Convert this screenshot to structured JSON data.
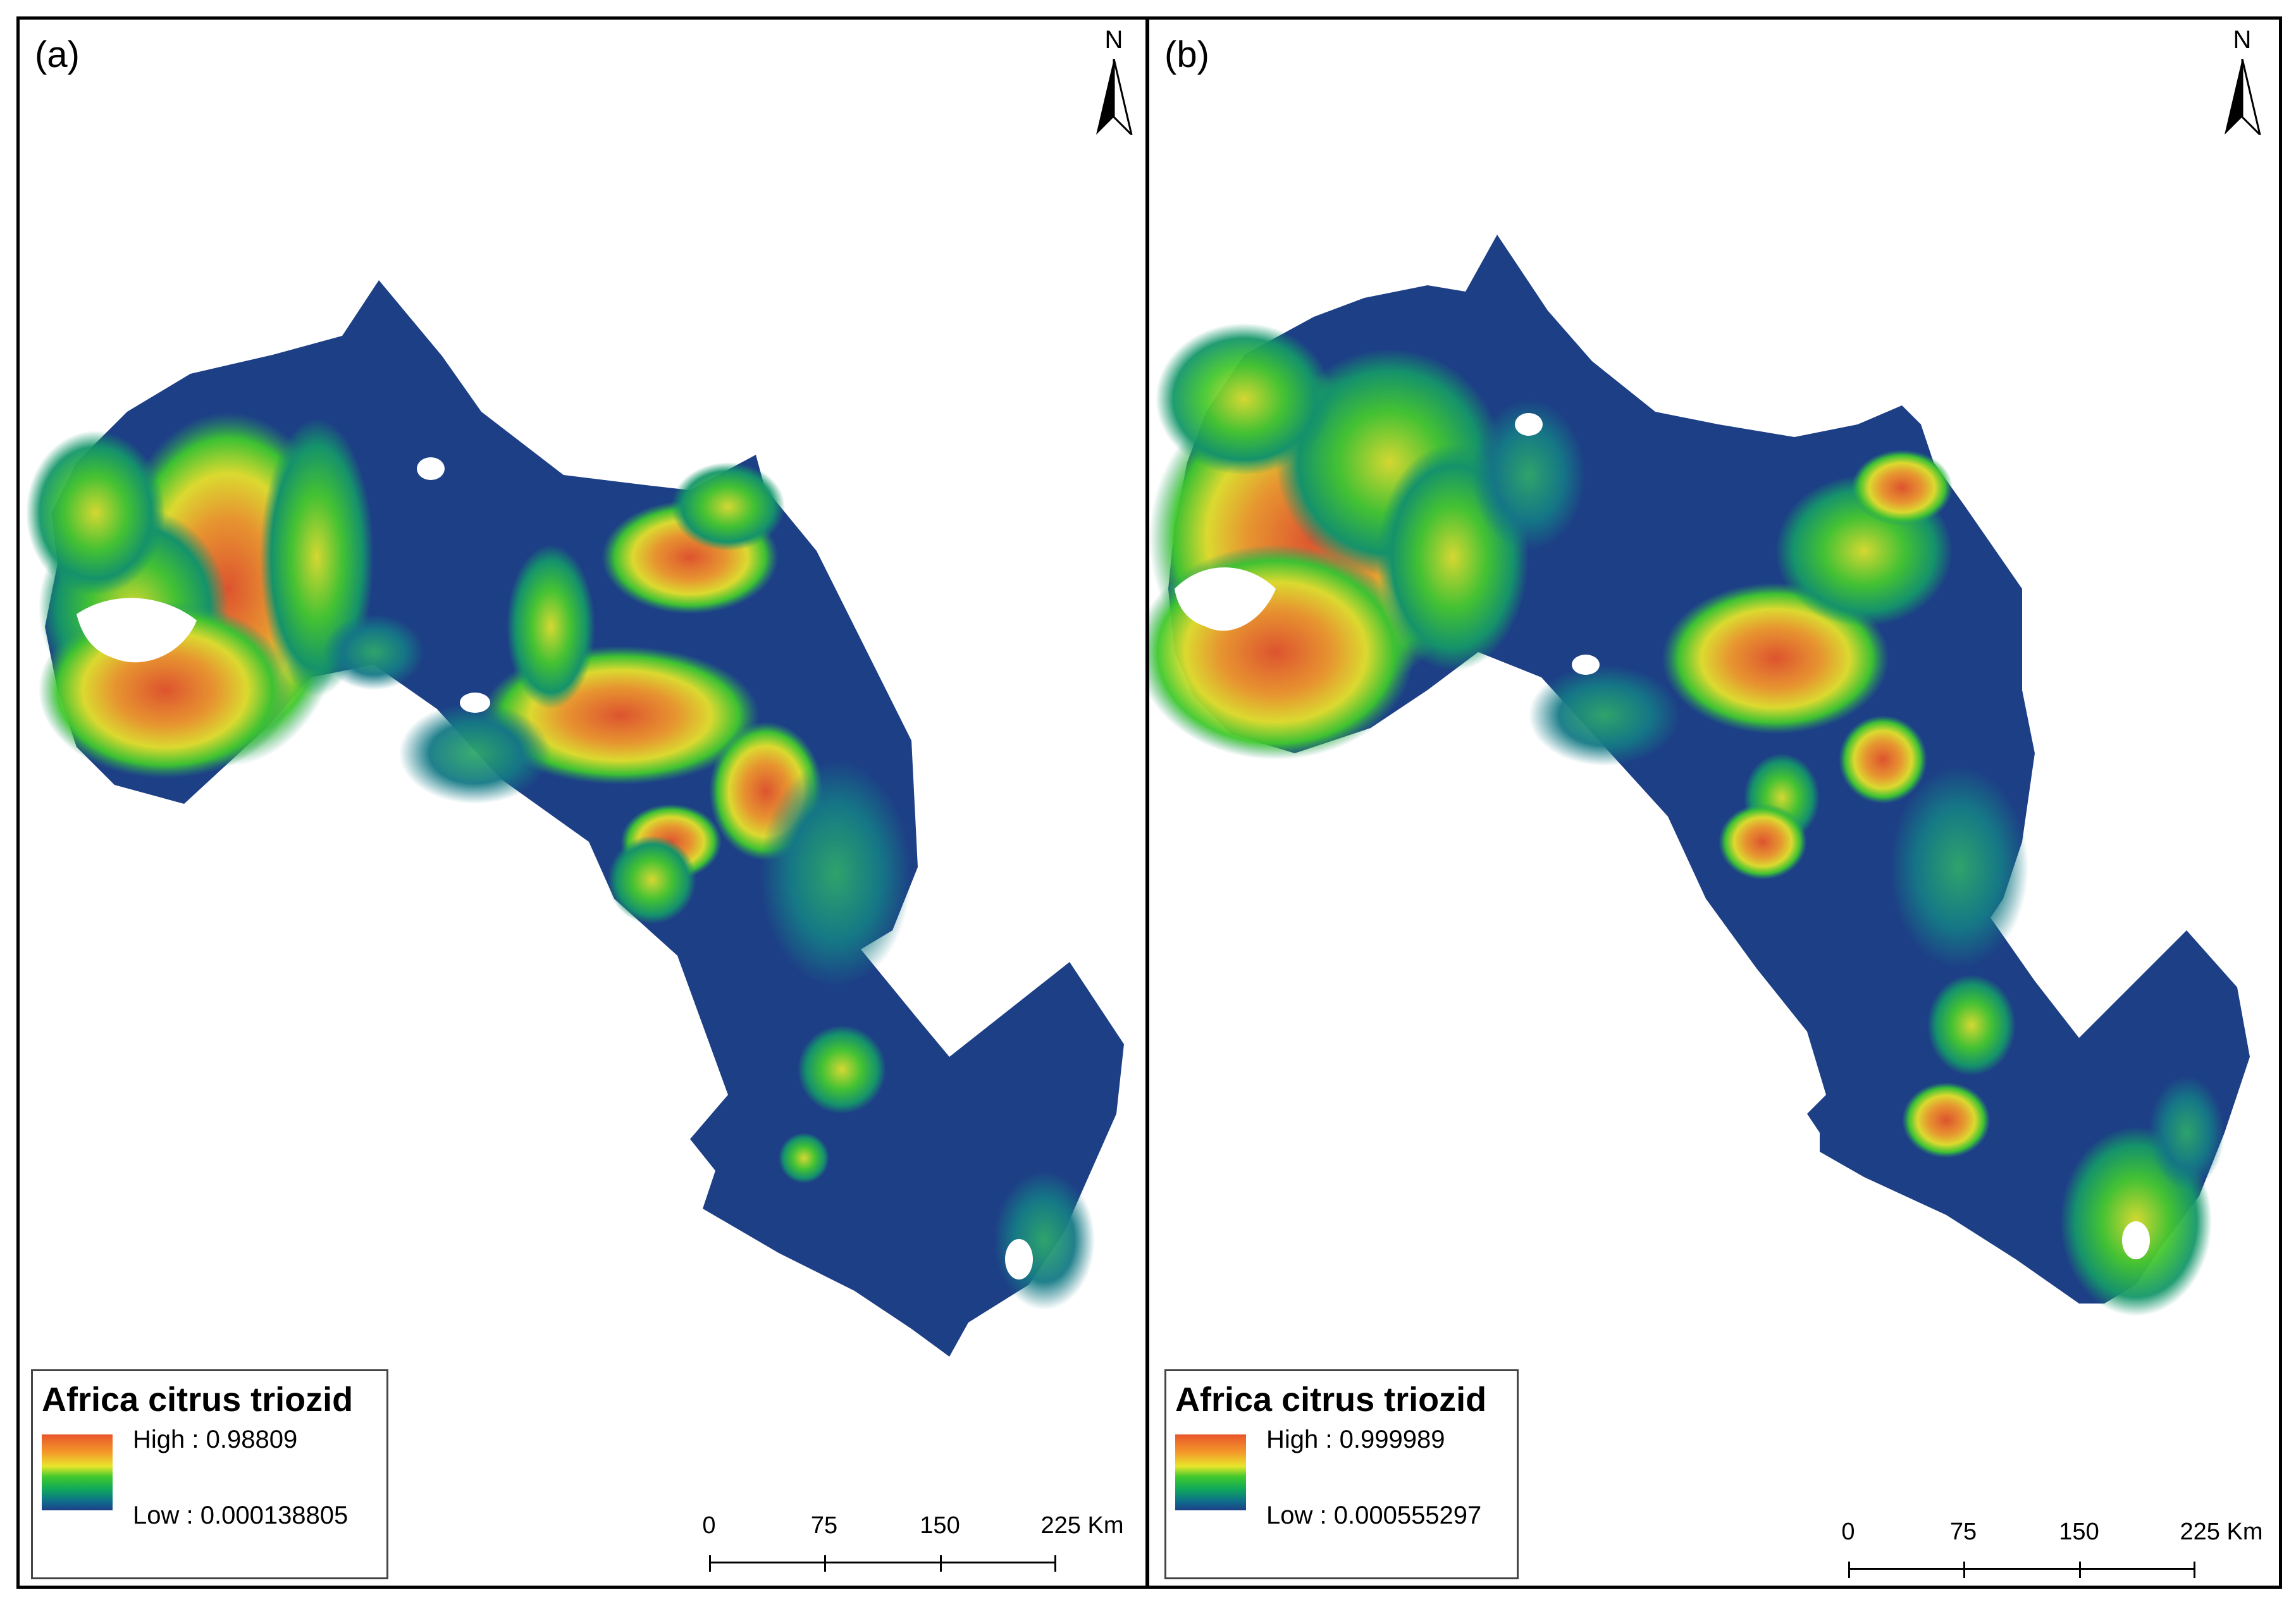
{
  "panels": [
    {
      "label": "(a)",
      "north": "N",
      "legend": {
        "title": "Africa citrus triozid",
        "high": "High : 0.98809",
        "low": "Low : 0.000138805"
      },
      "scale": {
        "ticks": [
          "0",
          "75",
          "150",
          "225 Km"
        ]
      }
    },
    {
      "label": "(b)",
      "north": "N",
      "legend": {
        "title": "Africa citrus triozid",
        "high": "High : 0.999989",
        "low": "Low : 0.000555297"
      },
      "scale": {
        "ticks": [
          "0",
          "75",
          "150",
          "225 Km"
        ]
      }
    }
  ],
  "colors": {
    "high": "#e8552b",
    "mid_high": "#e8e62a",
    "mid": "#3fc92e",
    "mid_low": "#0e6e8c",
    "low": "#1d3f86",
    "water": "#ffffff"
  },
  "icons": {
    "north_arrow": "north-arrow-icon"
  }
}
